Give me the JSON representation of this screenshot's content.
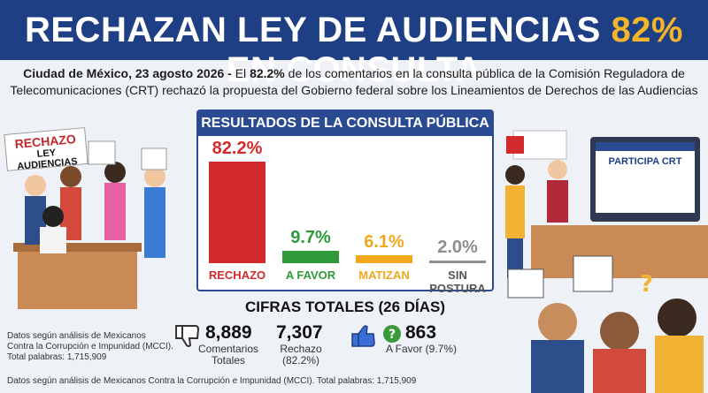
{
  "header": {
    "title_pre": "RECHAZAN LEY DE AUDIENCIAS ",
    "title_accent": "82%",
    "title_post": " EN CONSULTA"
  },
  "lead": {
    "dateline": "Ciudad de México, 23 agosto 2026 -",
    "text1": " El ",
    "pct": "82.2%",
    "text2": " de los comentarios en la consulta pública de la Comisión Reguladora de Telecomunicaciones (CRT) rechazó la propuesta del Gobierno federal sobre los Lineamientos de Derechos de las Audiencias"
  },
  "chart_data": {
    "type": "bar",
    "title": "RESULTADOS DE LA CONSULTA PÚBLICA",
    "categories": [
      "RECHAZO",
      "A FAVOR",
      "MATIZAN",
      "SIN POSTURA"
    ],
    "values": [
      82.2,
      9.7,
      6.1,
      2.0
    ],
    "value_labels": [
      "82.2%",
      "9.7%",
      "6.1%",
      "2.0%"
    ],
    "colors": [
      "#d32b2b",
      "#2f9a3a",
      "#f2a81d",
      "#8e8e8e"
    ],
    "ylim": [
      0,
      100
    ]
  },
  "totals": {
    "title": "CIFRAS TOTALES (26 DÍAS)",
    "comments_num": "8,889",
    "comments_lbl1": "Comentarios",
    "comments_lbl2": "Totales",
    "reject_num": "7,307",
    "reject_lbl1": "Rechazo",
    "reject_lbl2": "(82.2%)",
    "favor_num": "863",
    "favor_lbl": "A Favor (9.7%)"
  },
  "note_left": {
    "line1": "Datos según análisis de Mexicanos",
    "line2": "Contra la Corrupción e Impunidad (MCCI).",
    "line3": "Total palabras: 1,715,909"
  },
  "footer": "Datos según análisis de Mexicanos Contra la Corrupción e Impunidad (MCCI). Total palabras: 1,715,909",
  "illustration": {
    "sign_line1": "RECHAZO",
    "sign_line2": "LEY AUDIENCIAS",
    "screen_title": "PARTICIPA CRT"
  },
  "icons": [
    "thumbs-down-icon",
    "thumbs-up-icon",
    "question-icon"
  ]
}
